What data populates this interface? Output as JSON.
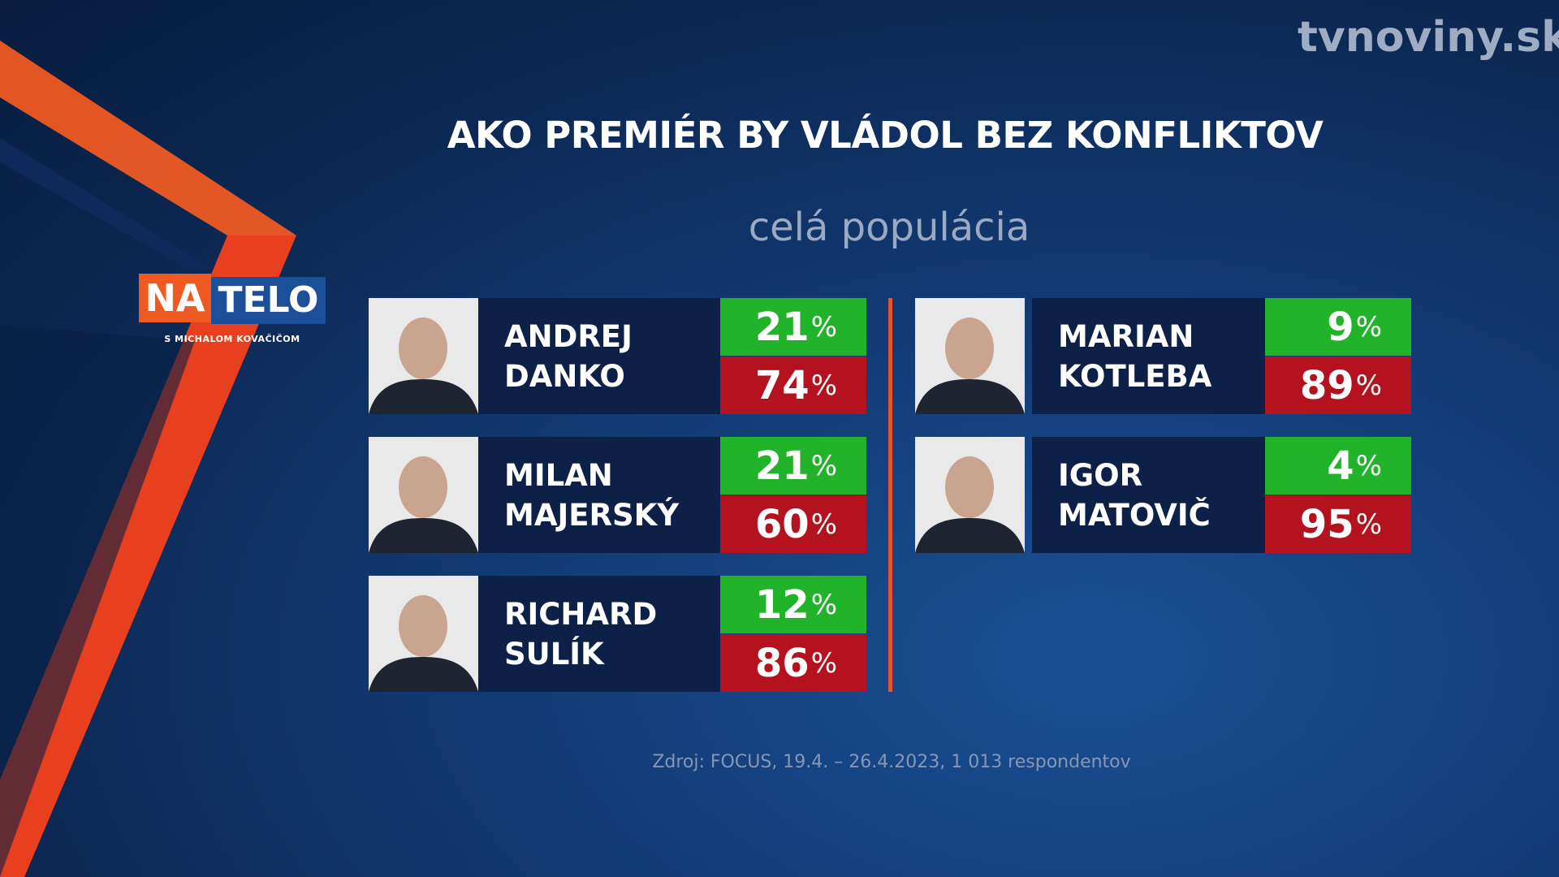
{
  "logo": {
    "left": "NA",
    "right": "TELO",
    "subtitle": "S MICHALOM KOVAČIČOM"
  },
  "brand": "tvnoviny.sk",
  "title": "AKO PREMIÉR BY VLÁDOL BEZ KONFLIKTOV",
  "subtitle": "celá populácia",
  "percent_sign": "%",
  "candidates": [
    {
      "name": [
        "ANDREJ",
        "DANKO"
      ],
      "yes": 21,
      "no": 74
    },
    {
      "name": [
        "MILAN",
        "MAJERSKÝ"
      ],
      "yes": 21,
      "no": 60
    },
    {
      "name": [
        "RICHARD",
        "SULÍK"
      ],
      "yes": 12,
      "no": 86
    },
    {
      "name": [
        "MARIAN",
        "KOTLEBA"
      ],
      "yes": 9,
      "no": 89
    },
    {
      "name": [
        "IGOR",
        "MATOVIČ"
      ],
      "yes": 4,
      "no": 95
    }
  ],
  "source": "Zdroj: FOCUS, 19.4. – 26.4.2023, 1 013 respondentov"
}
